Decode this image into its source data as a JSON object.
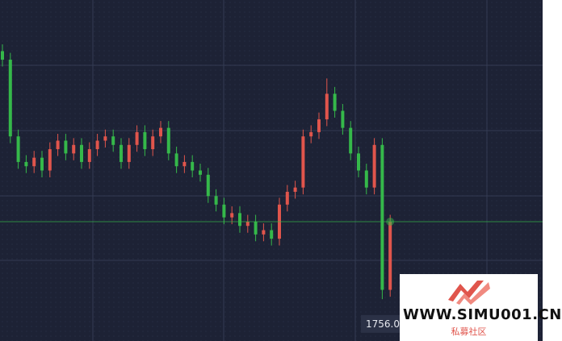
{
  "chart_data": {
    "type": "candlestick",
    "up_color": "#e0554c",
    "down_color": "#35b84a",
    "ylim": [
      1754,
      1794
    ],
    "open": [
      1788,
      1787,
      1778,
      1775,
      1774.5,
      1775.5,
      1774,
      1776.5,
      1777.5,
      1776,
      1777,
      1775,
      1776.5,
      1777.5,
      1778,
      1777,
      1775,
      1777,
      1778.5,
      1776.5,
      1778,
      1779,
      1776,
      1774.5,
      1775,
      1774,
      1773.5,
      1771,
      1770,
      1768.5,
      1769,
      1767.5,
      1768,
      1766.5,
      1767,
      1766,
      1770,
      1771.5,
      1772,
      1778,
      1778.5,
      1780,
      1783,
      1781,
      1779,
      1776,
      1774,
      1772,
      1777,
      1760
    ],
    "high": [
      1788.8,
      1787.8,
      1778.8,
      1775.8,
      1776.3,
      1776.3,
      1777.3,
      1778.3,
      1778.3,
      1777.8,
      1777.8,
      1777.3,
      1778.3,
      1778.8,
      1778.8,
      1777.8,
      1777.8,
      1779.3,
      1779.3,
      1778.8,
      1779.8,
      1779.8,
      1776.8,
      1775.8,
      1775.8,
      1774.8,
      1774.3,
      1771.8,
      1770.8,
      1769.8,
      1769.8,
      1768.8,
      1768.8,
      1767.8,
      1767.8,
      1770.8,
      1772.3,
      1772.8,
      1778.8,
      1779.3,
      1780.8,
      1784.8,
      1783.8,
      1781.8,
      1779.8,
      1776.8,
      1774.8,
      1777.8,
      1777.8,
      1768.8
    ],
    "low": [
      1786.2,
      1777.2,
      1774.2,
      1773.7,
      1773.7,
      1773.2,
      1773.2,
      1775.7,
      1775.2,
      1775.2,
      1774.2,
      1774.2,
      1775.7,
      1776.7,
      1776.2,
      1774.2,
      1774.2,
      1776.2,
      1775.7,
      1775.7,
      1777.2,
      1775.2,
      1773.7,
      1773.7,
      1773.2,
      1772.7,
      1770.2,
      1769.2,
      1767.7,
      1767.7,
      1766.7,
      1766.7,
      1765.7,
      1765.7,
      1765.2,
      1765.2,
      1769.2,
      1770.7,
      1771.2,
      1777.2,
      1777.7,
      1779.2,
      1780.2,
      1778.2,
      1775.2,
      1773.2,
      1771.2,
      1771.2,
      1758.9,
      1759.2
    ],
    "close": [
      1787,
      1778,
      1775,
      1774.5,
      1775.5,
      1774,
      1776.5,
      1777.5,
      1776,
      1777,
      1775,
      1776.5,
      1777.5,
      1778,
      1777,
      1775,
      1777,
      1778.5,
      1776.5,
      1778,
      1779,
      1776,
      1774.5,
      1775,
      1774,
      1773.5,
      1771,
      1770,
      1768.5,
      1769,
      1767.5,
      1768,
      1766.5,
      1767,
      1766,
      1770,
      1771.5,
      1772,
      1778,
      1778.5,
      1780,
      1783,
      1781,
      1779,
      1776,
      1774,
      1772,
      1777,
      1760,
      1768
    ],
    "price_label": {
      "value": 1756.0,
      "label": "1756.0"
    }
  },
  "watermark": {
    "url": "WWW.SIMU001.CN",
    "subtitle": "私募社区"
  }
}
